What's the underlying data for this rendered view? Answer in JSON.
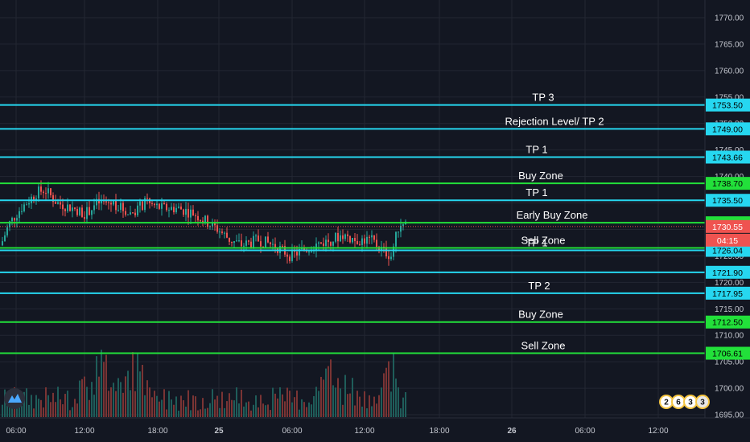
{
  "chart_data": {
    "type": "candlestick",
    "colors": {
      "background": "#131722",
      "grid": "#232733",
      "up": "#26a69a",
      "down": "#ef5350",
      "cyan_level": "#26d7f0",
      "green_level": "#22e03a",
      "current_price": "#ef5350"
    },
    "y_axis": {
      "range": [
        1694.5,
        1773.5
      ],
      "ticks": [
        "1770.00",
        "1765.00",
        "1760.00",
        "1755.00",
        "1750.00",
        "1745.00",
        "1740.00",
        "1735.00",
        "1730.00",
        "1725.00",
        "1720.00",
        "1715.00",
        "1710.00",
        "1705.00",
        "1700.00",
        "1695.00"
      ],
      "tick_values": [
        1770,
        1765,
        1760,
        1755,
        1750,
        1745,
        1740,
        1735,
        1730,
        1725,
        1720,
        1715,
        1710,
        1705,
        1700,
        1695
      ]
    },
    "x_axis": {
      "labels": [
        "06:00",
        "12:00",
        "18:00",
        "25",
        "06:00",
        "12:00",
        "18:00",
        "26",
        "06:00",
        "12:00"
      ],
      "bold_labels": [
        "25",
        "26"
      ]
    },
    "levels": [
      {
        "label": "TP 3",
        "price": 1753.5,
        "tag": "1753.50",
        "color": "cyan"
      },
      {
        "label": "Rejection Level/ TP 2",
        "price": 1749.0,
        "tag": "1749.00",
        "color": "cyan"
      },
      {
        "label": "TP 1",
        "price": 1743.66,
        "tag": "1743.66",
        "color": "cyan"
      },
      {
        "label": "Buy Zone",
        "price": 1738.7,
        "tag": "1738.70",
        "color": "green"
      },
      {
        "label": "TP 1",
        "price": 1735.5,
        "tag": "1735.50",
        "color": "cyan"
      },
      {
        "label": "Early Buy Zone",
        "price": 1731.26,
        "tag": "1731.26",
        "color": "green"
      },
      {
        "label": "Sell Zone",
        "price": 1726.5,
        "tag": "",
        "color": "green"
      },
      {
        "label": "TP 1",
        "price": 1726.04,
        "tag": "1726.04",
        "color": "cyan"
      },
      {
        "label": "",
        "price": 1721.9,
        "tag": "1721.90",
        "color": "cyan"
      },
      {
        "label": "TP 2",
        "price": 1717.95,
        "tag": "1717.95",
        "color": "cyan"
      },
      {
        "label": "Buy Zone",
        "price": 1712.5,
        "tag": "1712.50",
        "color": "green"
      },
      {
        "label": "Sell Zone",
        "price": 1706.61,
        "tag": "1706.61",
        "color": "green"
      }
    ],
    "current_price": {
      "value": "1730.55",
      "countdown": "04:15",
      "price": 1730.55
    },
    "badges": [
      "2",
      "6",
      "3",
      "3"
    ]
  }
}
